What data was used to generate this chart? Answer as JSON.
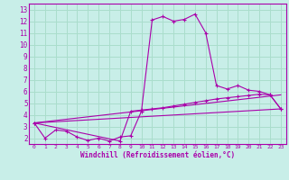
{
  "xlabel": "Windchill (Refroidissement éolien,°C)",
  "bg_color": "#c8eee8",
  "grid_color": "#aaddcc",
  "line_color": "#aa00aa",
  "xlim": [
    -0.5,
    23.5
  ],
  "ylim": [
    1.5,
    13.5
  ],
  "xticks": [
    0,
    1,
    2,
    3,
    4,
    5,
    6,
    7,
    8,
    9,
    10,
    11,
    12,
    13,
    14,
    15,
    16,
    17,
    18,
    19,
    20,
    21,
    22,
    23
  ],
  "yticks": [
    2,
    3,
    4,
    5,
    6,
    7,
    8,
    9,
    10,
    11,
    12,
    13
  ],
  "curve1_x": [
    0,
    1,
    2,
    3,
    4,
    5,
    6,
    7,
    8,
    9,
    10,
    11,
    12,
    13,
    14,
    15,
    16,
    17,
    18,
    19,
    20,
    21,
    22,
    23
  ],
  "curve1_y": [
    3.3,
    2.0,
    2.7,
    2.6,
    2.1,
    1.8,
    2.0,
    1.75,
    2.1,
    2.2,
    4.3,
    12.1,
    12.4,
    12.0,
    12.15,
    12.6,
    11.0,
    6.5,
    6.2,
    6.5,
    6.1,
    6.0,
    5.7,
    4.5
  ],
  "curve2_x": [
    0,
    8,
    9,
    10,
    11,
    12,
    13,
    14,
    15,
    16,
    17,
    18,
    19,
    20,
    21,
    22,
    23
  ],
  "curve2_y": [
    3.3,
    1.75,
    4.3,
    4.4,
    4.5,
    4.6,
    4.75,
    4.9,
    5.05,
    5.2,
    5.35,
    5.45,
    5.55,
    5.65,
    5.75,
    5.7,
    4.5
  ],
  "line1_x": [
    0,
    23
  ],
  "line1_y": [
    3.3,
    4.5
  ],
  "line2_x": [
    0,
    23
  ],
  "line2_y": [
    3.3,
    5.7
  ]
}
